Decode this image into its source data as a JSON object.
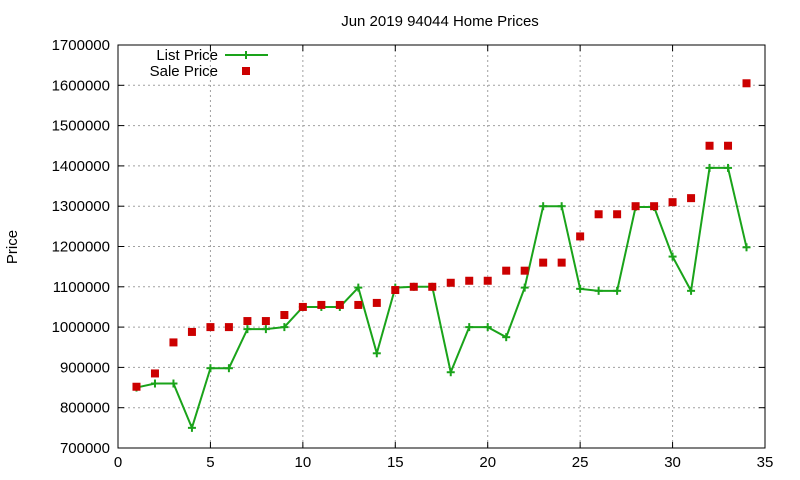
{
  "chart_data": {
    "type": "line",
    "title": "Jun 2019 94044 Home Prices",
    "xlabel": "",
    "ylabel": "Price",
    "xlim": [
      0,
      35
    ],
    "ylim": [
      700000,
      1700000
    ],
    "xticks": [
      0,
      5,
      10,
      15,
      20,
      25,
      30,
      35
    ],
    "yticks": [
      700000,
      800000,
      900000,
      1000000,
      1100000,
      1200000,
      1300000,
      1400000,
      1500000,
      1600000,
      1700000
    ],
    "grid": true,
    "legend_position": "top-left",
    "series": [
      {
        "name": "List Price",
        "style": "line-points",
        "color": "#1aa31a",
        "x": [
          1,
          2,
          3,
          4,
          5,
          6,
          7,
          8,
          9,
          10,
          11,
          12,
          13,
          14,
          15,
          16,
          17,
          18,
          19,
          20,
          21,
          22,
          23,
          24,
          25,
          26,
          27,
          28,
          29,
          30,
          31,
          32,
          33,
          34
        ],
        "values": [
          850000,
          860000,
          860000,
          750000,
          898000,
          898000,
          995000,
          995000,
          1000000,
          1050000,
          1050000,
          1050000,
          1098000,
          935000,
          1098000,
          1100000,
          1100000,
          888000,
          1000000,
          1000000,
          975000,
          1098000,
          1300000,
          1300000,
          1095000,
          1090000,
          1090000,
          1298000,
          1298000,
          1175000,
          1090000,
          1395000,
          1395000,
          1198000
        ]
      },
      {
        "name": "Sale Price",
        "style": "points",
        "color": "#cc0000",
        "x": [
          1,
          2,
          3,
          4,
          5,
          6,
          7,
          8,
          9,
          10,
          11,
          12,
          13,
          14,
          15,
          16,
          17,
          18,
          19,
          20,
          21,
          22,
          23,
          24,
          25,
          26,
          27,
          28,
          29,
          30,
          31,
          32,
          33,
          34
        ],
        "values": [
          852000,
          885000,
          962000,
          988000,
          1000000,
          1000000,
          1015000,
          1015000,
          1030000,
          1050000,
          1055000,
          1055000,
          1055000,
          1060000,
          1092000,
          1100000,
          1100000,
          1110000,
          1115000,
          1115000,
          1140000,
          1140000,
          1160000,
          1160000,
          1225000,
          1280000,
          1280000,
          1300000,
          1300000,
          1310000,
          1320000,
          1450000,
          1450000,
          1605000
        ]
      }
    ]
  }
}
